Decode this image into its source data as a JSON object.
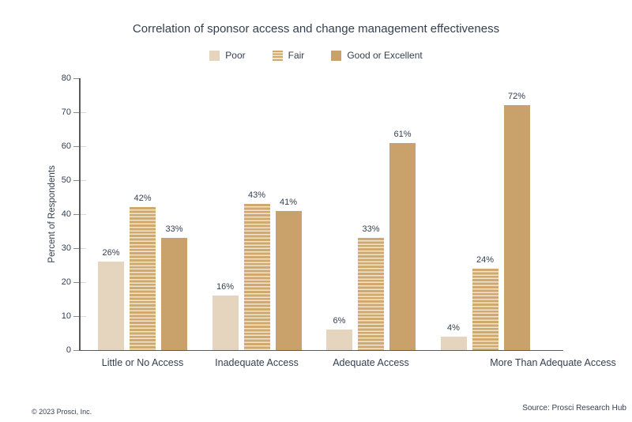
{
  "chart_data": {
    "type": "bar",
    "title": "Correlation of sponsor access and change management effectiveness",
    "categories": [
      "Little or No Access",
      "Inadequate Access",
      "Adequate Access",
      "More Than Adequate Access"
    ],
    "series": [
      {
        "name": "Poor",
        "values": [
          26,
          16,
          6,
          4
        ]
      },
      {
        "name": "Fair",
        "values": [
          42,
          43,
          33,
          24
        ]
      },
      {
        "name": "Good or Excellent",
        "values": [
          33,
          41,
          61,
          72
        ]
      }
    ],
    "xlabel": "",
    "ylabel": "Percent of Respondents",
    "ylim": [
      0,
      80
    ],
    "ytick_step": 10,
    "grid": "off",
    "legend_position": "top",
    "value_label_format": "{v}%"
  },
  "colors": {
    "poor": "#e5d5be",
    "fair_dark": "#d0a96f",
    "fair_light": "#f2e5cb",
    "good": "#c9a26b",
    "text": "#333f50",
    "axis": "#58595b"
  },
  "footer": {
    "copyright": "© 2023 Prosci, Inc.",
    "source": "Source: Prosci Research Hub"
  }
}
